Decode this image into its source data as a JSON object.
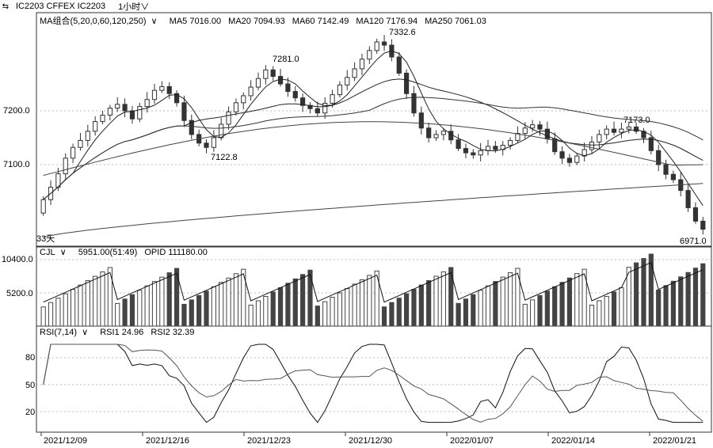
{
  "header": {
    "switch_icon": "swap-icon",
    "symbol": "IC2203 CFFEX IC2203",
    "period": "1小时"
  },
  "price_panel": {
    "legend": {
      "title": "MA组合(5,20,0,60,120,250)",
      "ma5": "MA5 7016.00",
      "ma20": "MA20 7094.93",
      "ma60": "MA60 7142.49",
      "ma120": "MA120 7176.94",
      "ma250": "MA250 7061.03"
    },
    "y_ticks": [
      "7200.0",
      "7100.0"
    ],
    "annotations": [
      "7332.6",
      "7281.0",
      "7122.8",
      "7173.0",
      "6971.0"
    ],
    "corner_label": "33天"
  },
  "volume_panel": {
    "legend": {
      "title": "CJL",
      "volume": "5951.00(51:49)",
      "opid": "OPID 111180.00"
    },
    "y_ticks": [
      "10400.0",
      "5200.0"
    ]
  },
  "rsi_panel": {
    "legend": {
      "title": "RSI(7,14)",
      "rsi1": "RSI1 24.96",
      "rsi2": "RSI2 32.39"
    },
    "y_ticks": [
      "80",
      "50",
      "20"
    ]
  },
  "x_axis": [
    "2021/12/09",
    "2021/12/16",
    "2021/12/23",
    "2021/12/30",
    "2022/01/07",
    "2022/01/14",
    "2022/01/21"
  ],
  "chart_data": {
    "type": "candlestick",
    "price_annotations": {
      "high": 7332.6,
      "local_high": 7281.0,
      "local_low": 7122.8,
      "swing_high": 7173.0,
      "low": 6971.0
    },
    "y_ticks": [
      7200.0,
      7100.0
    ],
    "ma": {
      "MA5": 7016.0,
      "MA20": 7094.93,
      "MA60": 7142.49,
      "MA120": 7176.94,
      "MA250": 7061.03
    },
    "volume_ticks": [
      10400.0,
      5200.0
    ],
    "rsi_ticks": [
      80,
      50,
      20
    ],
    "rsi": {
      "RSI1": 24.96,
      "RSI2": 32.39
    },
    "close": [
      7035,
      7058,
      7083,
      7112,
      7132,
      7145,
      7162,
      7180,
      7192,
      7205,
      7212,
      7200,
      7185,
      7208,
      7221,
      7238,
      7245,
      7232,
      7215,
      7182,
      7156,
      7140,
      7132,
      7150,
      7175,
      7198,
      7215,
      7228,
      7244,
      7260,
      7276,
      7264,
      7250,
      7236,
      7224,
      7210,
      7204,
      7196,
      7214,
      7230,
      7248,
      7262,
      7278,
      7296,
      7312,
      7328,
      7322,
      7300,
      7270,
      7232,
      7196,
      7168,
      7150,
      7156,
      7162,
      7146,
      7130,
      7122,
      7118,
      7126,
      7134,
      7128,
      7136,
      7145,
      7158,
      7168,
      7174,
      7166,
      7148,
      7124,
      7112,
      7104,
      7116,
      7128,
      7142,
      7156,
      7166,
      7160,
      7166,
      7170,
      7162,
      7150,
      7126,
      7100,
      7082,
      7072,
      7052,
      7020,
      6995,
      6980
    ]
  }
}
